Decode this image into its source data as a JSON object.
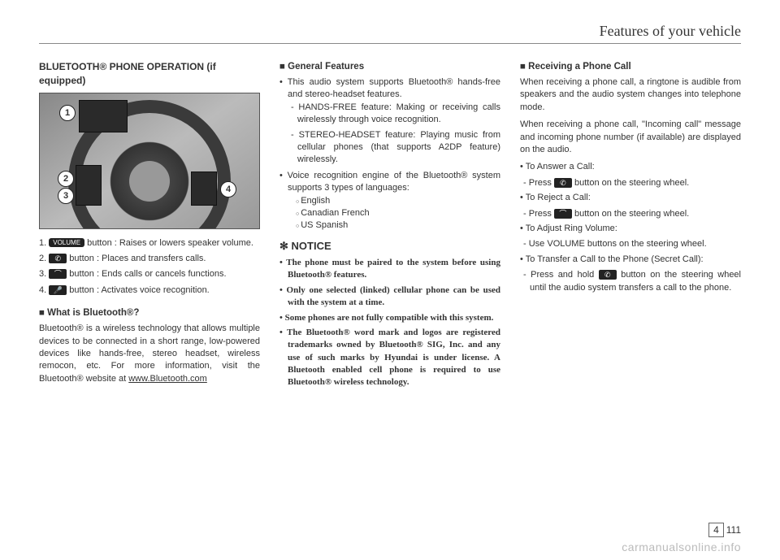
{
  "header": {
    "title": "Features of your vehicle"
  },
  "col1": {
    "title": "BLUETOOTH® PHONE OPERATION (if equipped)",
    "callouts": {
      "c1": "1",
      "c2": "2",
      "c3": "3",
      "c4": "4"
    },
    "buttons": {
      "b1_num": "1.",
      "b1_label": "VOLUME",
      "b1_text": " button : Raises or lowers speaker volume.",
      "b2_num": "2.",
      "b2_icon": "✆",
      "b2_text": " button : Places and transfers calls.",
      "b3_num": "3.",
      "b3_icon": "⌒",
      "b3_text": " button : Ends calls or cancels functions.",
      "b4_num": "4.",
      "b4_icon": "🎤",
      "b4_text": " button : Activates voice recognition."
    },
    "what_title": "■ What is Bluetooth®?",
    "what_body": "Bluetooth® is a wireless technology that allows multiple devices to be connected in a short range, low-powered devices like hands-free, stereo headset, wireless remocon, etc. For more information, visit the Bluetooth® website at ",
    "what_url": "www.Bluetooth.com"
  },
  "col2": {
    "gen_title": "■ General Features",
    "gen1": "This audio system supports Bluetooth® hands-free and stereo-headset features.",
    "gen1a": "HANDS-FREE feature: Making or receiving calls wirelessly through voice recognition.",
    "gen1b": "STEREO-HEADSET feature: Playing music from cellular phones (that supports A2DP feature) wirelessly.",
    "gen2": "Voice recognition engine of the Bluetooth® system supports 3 types of languages:",
    "lang1": "English",
    "lang2": "Canadian French",
    "lang3": "US Spanish",
    "notice_star": "✻",
    "notice_title": "NOTICE",
    "n1": "The phone must be paired to the system before using Bluetooth® features.",
    "n2": "Only one selected (linked) cellular phone can be used with the system at a time.",
    "n3": "Some phones are not fully compatible with this system.",
    "n4": "The Bluetooth® word mark and logos are registered trademarks owned by Bluetooth® SIG, Inc. and any use of such marks by Hyundai is under license. A Bluetooth enabled cell phone is required to use Bluetooth® wireless technology."
  },
  "col3": {
    "recv_title": "■ Receiving a Phone Call",
    "recv_p1": "When receiving a phone call, a ringtone is audible from speakers and the audio system changes into telephone mode.",
    "recv_p2": "When receiving a phone call, \"Incoming call\" message and incoming phone number (if available) are displayed on the audio.",
    "answer_h": "To Answer a Call:",
    "answer_t": "Press ",
    "answer_icon": "✆",
    "answer_t2": " button on the steering wheel.",
    "reject_h": "To Reject a Call:",
    "reject_t": "Press ",
    "reject_icon": "⌒",
    "reject_t2": " button on the steering wheel.",
    "vol_h": "To Adjust Ring Volume:",
    "vol_t": "Use VOLUME buttons on the steering wheel.",
    "transfer_h": "To Transfer a Call to the Phone (Secret Call):",
    "transfer_t": "Press and hold ",
    "transfer_icon": "✆",
    "transfer_t2": " button on the steering wheel until the audio system transfers a call to the phone."
  },
  "footer": {
    "tab": "4",
    "page": "111",
    "watermark": "carmanualsonline.info"
  }
}
